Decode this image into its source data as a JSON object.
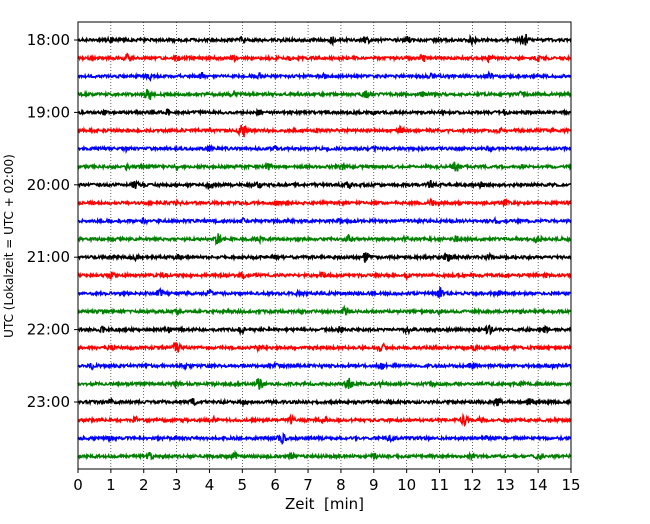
{
  "chart_data": {
    "type": "line",
    "chart_kind": "seismogram helicorder",
    "xlabel": "Zeit  [min]",
    "ylabel": "UTC (Lokalzeit = UTC + 02:00)",
    "xlim": [
      0,
      15
    ],
    "x_ticks": [
      0,
      1,
      2,
      3,
      4,
      5,
      6,
      7,
      8,
      9,
      10,
      11,
      12,
      13,
      14,
      15
    ],
    "x_tick_labels": [
      "0",
      "1",
      "2",
      "3",
      "4",
      "5",
      "6",
      "7",
      "8",
      "9",
      "10",
      "11",
      "12",
      "13",
      "14",
      "15"
    ],
    "y_tick_labels": [
      "18:00",
      "19:00",
      "20:00",
      "21:00",
      "22:00",
      "23:00"
    ],
    "y_tick_trace_index": [
      0,
      4,
      8,
      12,
      16,
      20
    ],
    "trace_minutes": 15,
    "grid": {
      "vertical_dotted_each_minute": true,
      "horizontal": false
    },
    "legend": "none",
    "color_cycle": [
      "#000000",
      "#ff0000",
      "#0000ff",
      "#008000"
    ],
    "series": [
      {
        "start": "18:00",
        "color": "#000000",
        "bursts": [
          [
            1.0,
            0.4
          ],
          [
            3.0,
            0.5
          ],
          [
            5.0,
            0.4
          ],
          [
            7.75,
            0.6
          ],
          [
            8.75,
            0.6
          ],
          [
            10.0,
            0.55
          ],
          [
            12.0,
            0.5
          ],
          [
            13.6,
            0.9
          ]
        ]
      },
      {
        "start": "18:15",
        "color": "#ff0000",
        "bursts": [
          [
            1.5,
            0.5
          ],
          [
            3.0,
            0.45
          ],
          [
            4.75,
            0.4
          ],
          [
            6.5,
            0.4
          ],
          [
            10.5,
            0.5
          ],
          [
            12.5,
            0.45
          ],
          [
            14.0,
            0.4
          ]
        ]
      },
      {
        "start": "18:30",
        "color": "#0000ff",
        "bursts": [
          [
            2.2,
            0.5
          ],
          [
            3.75,
            0.45
          ],
          [
            5.5,
            0.4
          ],
          [
            7.5,
            0.35
          ],
          [
            10.75,
            0.4
          ],
          [
            12.5,
            0.5
          ]
        ]
      },
      {
        "start": "18:45",
        "color": "#008000",
        "bursts": [
          [
            2.15,
            0.8
          ],
          [
            4.75,
            0.45
          ],
          [
            8.75,
            0.5
          ],
          [
            10.5,
            0.4
          ],
          [
            13.5,
            0.45
          ]
        ]
      },
      {
        "start": "19:00",
        "color": "#000000",
        "bursts": [
          [
            0.8,
            0.35
          ],
          [
            2.75,
            0.45
          ],
          [
            5.5,
            0.45
          ],
          [
            7.5,
            0.35
          ],
          [
            9.0,
            0.35
          ],
          [
            13.0,
            0.4
          ]
        ]
      },
      {
        "start": "19:15",
        "color": "#ff0000",
        "bursts": [
          [
            5.0,
            0.9
          ],
          [
            7.25,
            0.35
          ],
          [
            9.8,
            0.5
          ],
          [
            12.8,
            0.45
          ]
        ]
      },
      {
        "start": "19:30",
        "color": "#0000ff",
        "bursts": [
          [
            1.5,
            0.4
          ],
          [
            4.0,
            0.35
          ],
          [
            6.0,
            0.35
          ],
          [
            9.0,
            0.3
          ],
          [
            12.5,
            0.35
          ]
        ]
      },
      {
        "start": "19:45",
        "color": "#008000",
        "bursts": [
          [
            1.5,
            0.5
          ],
          [
            3.0,
            0.4
          ],
          [
            5.8,
            0.45
          ],
          [
            8.0,
            0.45
          ],
          [
            11.5,
            0.8
          ],
          [
            13.5,
            0.4
          ]
        ]
      },
      {
        "start": "20:00",
        "color": "#000000",
        "bursts": [
          [
            1.75,
            0.6
          ],
          [
            4.0,
            0.6
          ],
          [
            5.5,
            0.4
          ],
          [
            8.25,
            0.5
          ],
          [
            10.75,
            0.6
          ],
          [
            12.25,
            0.4
          ]
        ]
      },
      {
        "start": "20:15",
        "color": "#ff0000",
        "bursts": [
          [
            3.0,
            0.4
          ],
          [
            6.0,
            0.35
          ],
          [
            10.75,
            0.45
          ],
          [
            13.0,
            0.4
          ]
        ]
      },
      {
        "start": "20:30",
        "color": "#0000ff",
        "bursts": [
          [
            2.0,
            0.35
          ],
          [
            5.0,
            0.35
          ],
          [
            8.0,
            0.35
          ],
          [
            12.75,
            0.4
          ]
        ]
      },
      {
        "start": "20:45",
        "color": "#008000",
        "bursts": [
          [
            4.25,
            0.7
          ],
          [
            5.5,
            0.55
          ],
          [
            8.25,
            0.5
          ],
          [
            10.0,
            0.4
          ],
          [
            11.5,
            0.45
          ],
          [
            14.0,
            0.55
          ]
        ]
      },
      {
        "start": "21:00",
        "color": "#000000",
        "bursts": [
          [
            1.75,
            0.4
          ],
          [
            3.0,
            0.5
          ],
          [
            6.0,
            0.4
          ],
          [
            8.75,
            0.65
          ],
          [
            11.25,
            0.55
          ],
          [
            12.5,
            0.5
          ]
        ]
      },
      {
        "start": "21:15",
        "color": "#ff0000",
        "bursts": [
          [
            1.0,
            0.45
          ],
          [
            2.6,
            0.4
          ],
          [
            5.0,
            0.4
          ],
          [
            7.4,
            0.5
          ],
          [
            10.0,
            0.4
          ],
          [
            14.25,
            0.45
          ]
        ]
      },
      {
        "start": "21:30",
        "color": "#0000ff",
        "bursts": [
          [
            2.5,
            0.6
          ],
          [
            4.0,
            0.45
          ],
          [
            6.75,
            0.4
          ],
          [
            11.0,
            0.7
          ],
          [
            12.75,
            0.45
          ]
        ]
      },
      {
        "start": "21:45",
        "color": "#008000",
        "bursts": [
          [
            3.0,
            0.35
          ],
          [
            5.0,
            0.35
          ],
          [
            8.15,
            0.6
          ],
          [
            11.0,
            0.4
          ],
          [
            13.5,
            0.35
          ]
        ]
      },
      {
        "start": "22:00",
        "color": "#000000",
        "bursts": [
          [
            0.75,
            0.45
          ],
          [
            2.75,
            0.55
          ],
          [
            5.0,
            0.5
          ],
          [
            8.0,
            0.45
          ],
          [
            10.0,
            0.5
          ],
          [
            12.5,
            0.55
          ],
          [
            14.25,
            0.45
          ]
        ]
      },
      {
        "start": "22:15",
        "color": "#ff0000",
        "bursts": [
          [
            1.0,
            0.4
          ],
          [
            3.0,
            0.7
          ],
          [
            5.5,
            0.4
          ],
          [
            9.25,
            0.65
          ],
          [
            12.0,
            0.45
          ],
          [
            14.6,
            0.4
          ]
        ]
      },
      {
        "start": "22:30",
        "color": "#0000ff",
        "bursts": [
          [
            0.4,
            0.5
          ],
          [
            3.25,
            0.4
          ],
          [
            6.0,
            0.4
          ],
          [
            9.25,
            0.5
          ],
          [
            12.0,
            0.45
          ],
          [
            14.5,
            0.4
          ]
        ]
      },
      {
        "start": "22:45",
        "color": "#008000",
        "bursts": [
          [
            3.0,
            0.45
          ],
          [
            5.5,
            0.8
          ],
          [
            8.25,
            0.75
          ],
          [
            9.25,
            0.4
          ],
          [
            10.75,
            0.45
          ],
          [
            13.5,
            0.4
          ]
        ]
      },
      {
        "start": "23:00",
        "color": "#000000",
        "bursts": [
          [
            1.0,
            0.35
          ],
          [
            3.5,
            0.5
          ],
          [
            5.0,
            0.4
          ],
          [
            9.5,
            0.4
          ],
          [
            12.75,
            0.65
          ],
          [
            13.75,
            0.55
          ]
        ]
      },
      {
        "start": "23:15",
        "color": "#ff0000",
        "bursts": [
          [
            1.75,
            0.45
          ],
          [
            4.1,
            0.5
          ],
          [
            6.5,
            0.55
          ],
          [
            7.5,
            0.45
          ],
          [
            11.75,
            0.6
          ],
          [
            12.25,
            0.5
          ]
        ]
      },
      {
        "start": "23:30",
        "color": "#0000ff",
        "bursts": [
          [
            1.0,
            0.35
          ],
          [
            3.0,
            0.4
          ],
          [
            6.2,
            0.75
          ],
          [
            9.5,
            0.35
          ],
          [
            12.5,
            0.35
          ]
        ]
      },
      {
        "start": "23:45",
        "color": "#008000",
        "bursts": [
          [
            2.2,
            0.55
          ],
          [
            4.75,
            0.45
          ],
          [
            6.5,
            0.4
          ],
          [
            9.0,
            0.4
          ],
          [
            12.0,
            0.45
          ],
          [
            14.0,
            0.4
          ]
        ]
      }
    ]
  }
}
